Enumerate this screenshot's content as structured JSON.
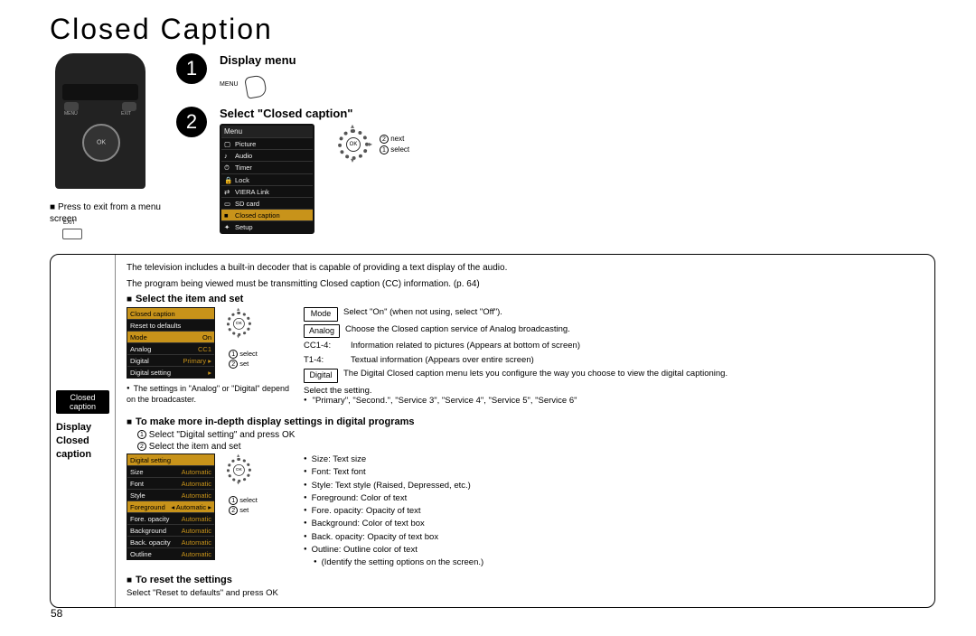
{
  "page": {
    "number": "58",
    "title": "Closed Caption"
  },
  "remote": {
    "exit_note": "Press to exit from a menu screen",
    "exit_button_label": "EXIT",
    "menu_label": "MENU",
    "exit_label2": "EXIT"
  },
  "steps": {
    "s1": {
      "num": "1",
      "title": "Display menu",
      "menu_label": "MENU"
    },
    "s2": {
      "num": "2",
      "title": "Select \"Closed caption\"",
      "ok_labels": {
        "a": "next",
        "b": "select"
      }
    }
  },
  "main_menu_osd": {
    "title": "Menu",
    "items": [
      {
        "icon": "▢",
        "label": "Picture"
      },
      {
        "icon": "♪",
        "label": "Audio"
      },
      {
        "icon": "⏱",
        "label": "Timer"
      },
      {
        "icon": "🔒",
        "label": "Lock"
      },
      {
        "icon": "⇄",
        "label": "VIERA Link"
      },
      {
        "icon": "▭",
        "label": "SD card"
      },
      {
        "icon": "■",
        "label": "Closed caption",
        "highlight": true
      },
      {
        "icon": "✦",
        "label": "Setup"
      }
    ]
  },
  "box": {
    "left_chip": "Closed caption",
    "left_title": "Display Closed caption",
    "intro1": "The television includes a built-in decoder that is capable of providing a text display of the audio.",
    "intro2": "The program being viewed must be transmitting Closed caption (CC) information. (p. 64)",
    "head_select": "Select the item and set",
    "analogdigital_note": "The settings in \"Analog\" or \"Digital\" depend on the broadcaster.",
    "cc_osd": {
      "title": "Closed caption",
      "rows": [
        {
          "l": "Reset to defaults",
          "v": ""
        },
        {
          "l": "Mode",
          "v": "On",
          "hl": true
        },
        {
          "l": "Analog",
          "v": "CC1"
        },
        {
          "l": "Digital",
          "v": "Primary ▸"
        },
        {
          "l": "Digital setting",
          "v": "▸"
        }
      ]
    },
    "ok1": {
      "a": "select",
      "b": "set"
    },
    "mode": {
      "chip": "Mode",
      "text": "Select \"On\" (when not using, select \"Off\")."
    },
    "analog": {
      "chip": "Analog",
      "text": "Choose the Closed caption service of Analog broadcasting."
    },
    "cc14": {
      "label": "CC1-4:",
      "text": "Information related to pictures (Appears at bottom of screen)"
    },
    "t14": {
      "label": "T1-4:",
      "text": "Textual information (Appears over entire screen)"
    },
    "digital": {
      "chip": "Digital",
      "text": "The Digital Closed caption menu lets you configure the way you choose to view the digital captioning."
    },
    "select_setting": "Select the setting.",
    "primary_list": "\"Primary\", \"Second.\", \"Service 3\", \"Service 4\", \"Service 5\", \"Service 6\"",
    "head_depth": "To make more in-depth display settings in digital programs",
    "sub1": "Select \"Digital setting\" and press OK",
    "sub2": "Select the item and set",
    "ds_osd": {
      "title": "Digital setting",
      "rows": [
        {
          "l": "Size",
          "v": "Automatic"
        },
        {
          "l": "Font",
          "v": "Automatic"
        },
        {
          "l": "Style",
          "v": "Automatic"
        },
        {
          "l": "Foreground",
          "v": "Automatic",
          "hl": true,
          "arrows": true
        },
        {
          "l": "Fore. opacity",
          "v": "Automatic"
        },
        {
          "l": "Background",
          "v": "Automatic"
        },
        {
          "l": "Back. opacity",
          "v": "Automatic"
        },
        {
          "l": "Outline",
          "v": "Automatic"
        }
      ]
    },
    "ok2": {
      "a": "select",
      "b": "set"
    },
    "bullets2": [
      "Size:  Text size",
      "Font:  Text font",
      "Style:  Text style (Raised, Depressed, etc.)",
      "Foreground:  Color of text",
      "Fore. opacity:  Opacity of text",
      "Background:  Color of text box",
      "Back. opacity:  Opacity of text box",
      "Outline:  Outline color of text",
      "(Identify the setting options on the screen.)"
    ],
    "head_reset": "To reset the settings",
    "reset_text": "Select \"Reset to defaults\" and press OK"
  }
}
